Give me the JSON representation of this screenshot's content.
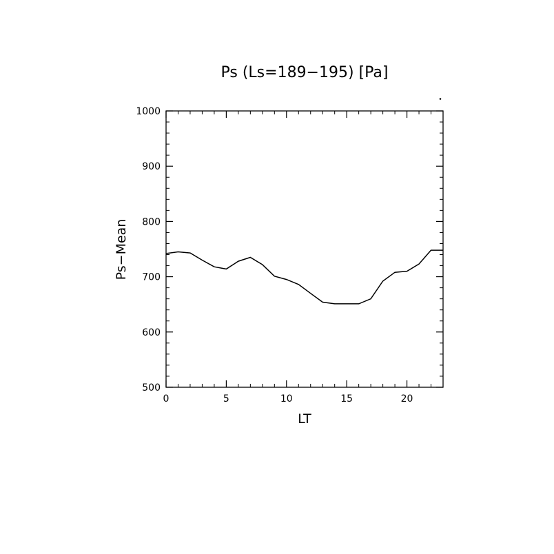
{
  "chart_data": {
    "type": "line",
    "title": "Ps (Ls=189−195) [Pa]",
    "xlabel": "LT",
    "ylabel": "Ps−Mean",
    "xlim": [
      0,
      23
    ],
    "ylim": [
      500,
      1000
    ],
    "x_ticks": [
      0,
      5,
      10,
      15,
      20
    ],
    "y_ticks": [
      500,
      600,
      700,
      800,
      900,
      1000
    ],
    "grid": false,
    "series": [
      {
        "x": [
          0,
          1,
          2,
          3,
          4,
          5,
          6,
          7,
          8,
          9,
          10,
          11,
          12,
          13,
          14,
          15,
          16,
          17,
          18,
          19,
          20,
          21,
          22,
          23
        ],
        "values": [
          742,
          745,
          743,
          730,
          718,
          714,
          728,
          735,
          722,
          701,
          695,
          686,
          670,
          654,
          651,
          651,
          651,
          660,
          692,
          708,
          710,
          723,
          748,
          748
        ]
      }
    ]
  }
}
